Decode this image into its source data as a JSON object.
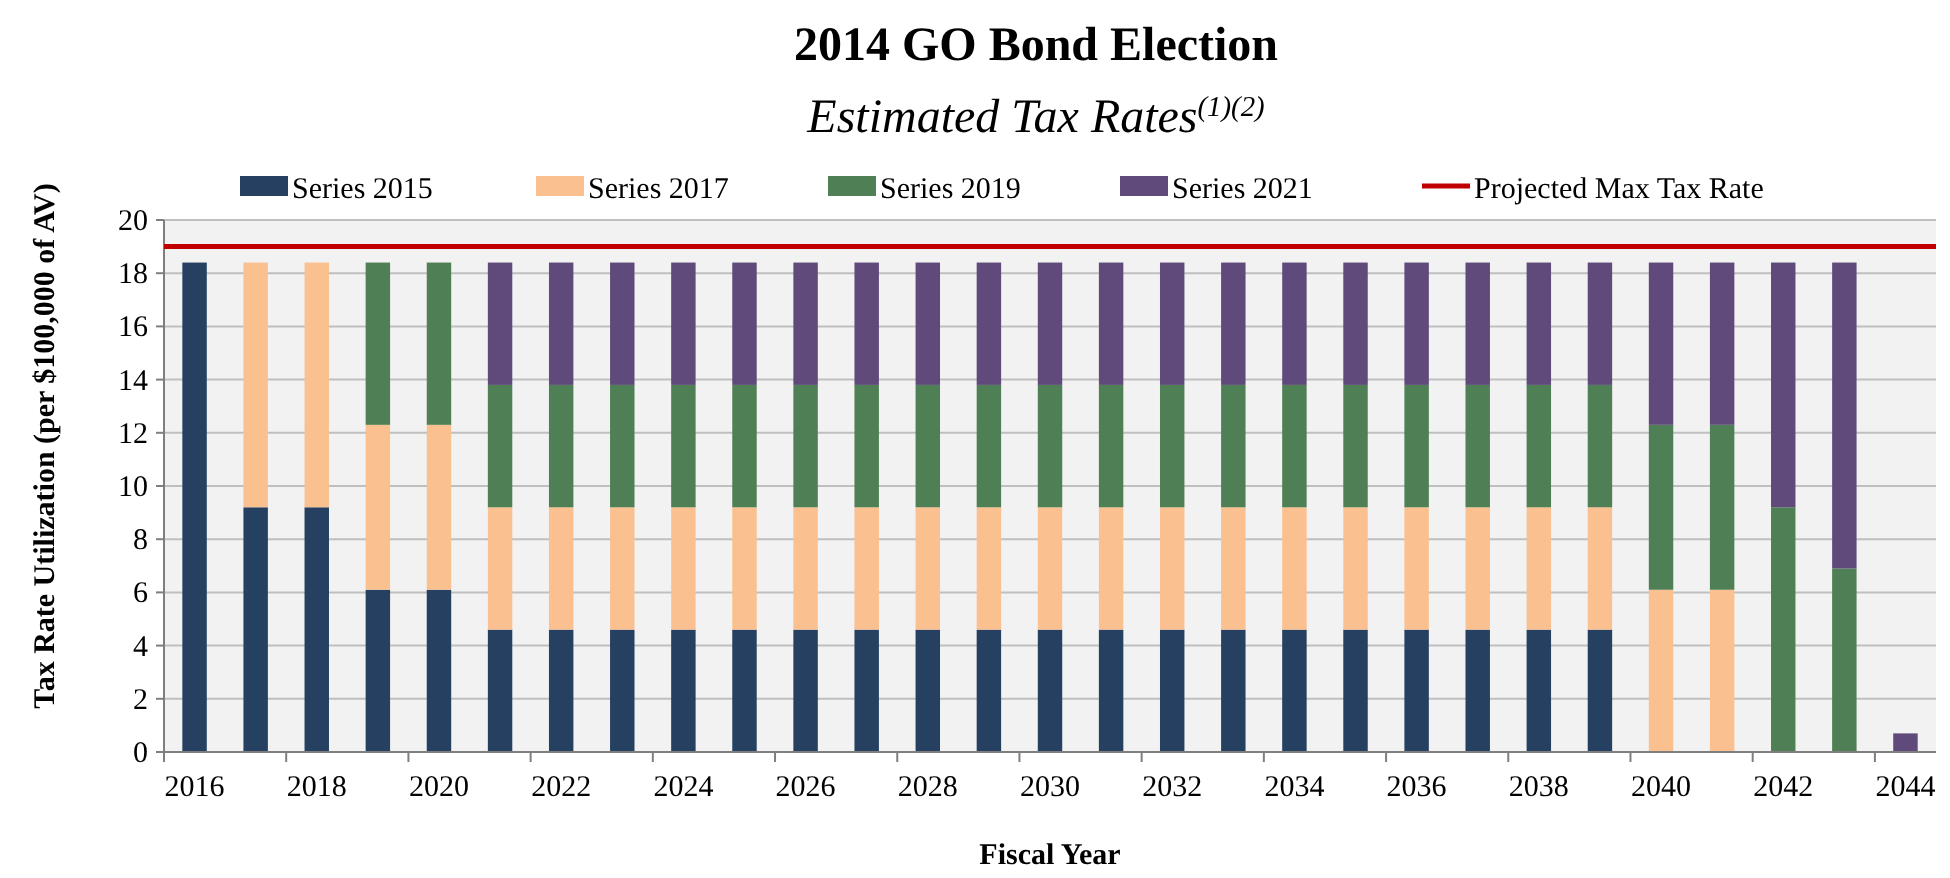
{
  "chart_data": {
    "type": "bar",
    "stacked": true,
    "title": "2014 GO Bond Election",
    "subtitle": "Estimated Tax Rates$^{(1)(2)}$",
    "xlabel": "Fiscal Year",
    "ylabel": "Tax Rate Utilization (per $100,000 of AV)",
    "categories": [
      "2016",
      null,
      "2018",
      null,
      "2020",
      null,
      "2022",
      null,
      "2024",
      null,
      "2026",
      null,
      "2028",
      null,
      "2030",
      null,
      "2032",
      null,
      "2034",
      null,
      "2036",
      null,
      "2038",
      null,
      "2040",
      null,
      "2042",
      null,
      "2044"
    ],
    "series": [
      {
        "name": "Series 2015",
        "color": "#254061",
        "values": [
          18.4,
          9.2,
          9.2,
          6.1,
          6.1,
          4.6,
          4.6,
          4.6,
          4.6,
          4.6,
          4.6,
          4.6,
          4.6,
          4.6,
          4.6,
          4.6,
          4.6,
          4.6,
          4.6,
          4.6,
          4.6,
          4.6,
          4.6,
          4.6,
          0,
          0,
          0,
          0,
          0
        ]
      },
      {
        "name": "Series 2017",
        "color": "#fac090",
        "values": [
          0,
          9.2,
          9.2,
          6.2,
          6.2,
          4.6,
          4.6,
          4.6,
          4.6,
          4.6,
          4.6,
          4.6,
          4.6,
          4.6,
          4.6,
          4.6,
          4.6,
          4.6,
          4.6,
          4.6,
          4.6,
          4.6,
          4.6,
          4.6,
          6.1,
          6.1,
          0,
          0,
          0
        ]
      },
      {
        "name": "Series 2019",
        "color": "#4f7f54",
        "values": [
          0,
          0,
          0,
          6.1,
          6.1,
          4.6,
          4.6,
          4.6,
          4.6,
          4.6,
          4.6,
          4.6,
          4.6,
          4.6,
          4.6,
          4.6,
          4.6,
          4.6,
          4.6,
          4.6,
          4.6,
          4.6,
          4.6,
          4.6,
          6.2,
          6.2,
          9.2,
          6.9,
          0
        ]
      },
      {
        "name": "Series 2021",
        "color": "#604a7b",
        "values": [
          0,
          0,
          0,
          0,
          0,
          4.6,
          4.6,
          4.6,
          4.6,
          4.6,
          4.6,
          4.6,
          4.6,
          4.6,
          4.6,
          4.6,
          4.6,
          4.6,
          4.6,
          4.6,
          4.6,
          4.6,
          4.6,
          4.6,
          6.1,
          6.1,
          9.2,
          11.5,
          0.7
        ]
      }
    ],
    "ref_lines": [
      {
        "axis": "y",
        "value": 19,
        "label": "Projected Max Tax Rate",
        "color": "#c00000"
      }
    ],
    "ylim": [
      0,
      20
    ],
    "yticks": [
      0,
      2,
      4,
      6,
      8,
      10,
      12,
      14,
      16,
      18,
      20
    ],
    "grid": "y",
    "legend": "top"
  }
}
